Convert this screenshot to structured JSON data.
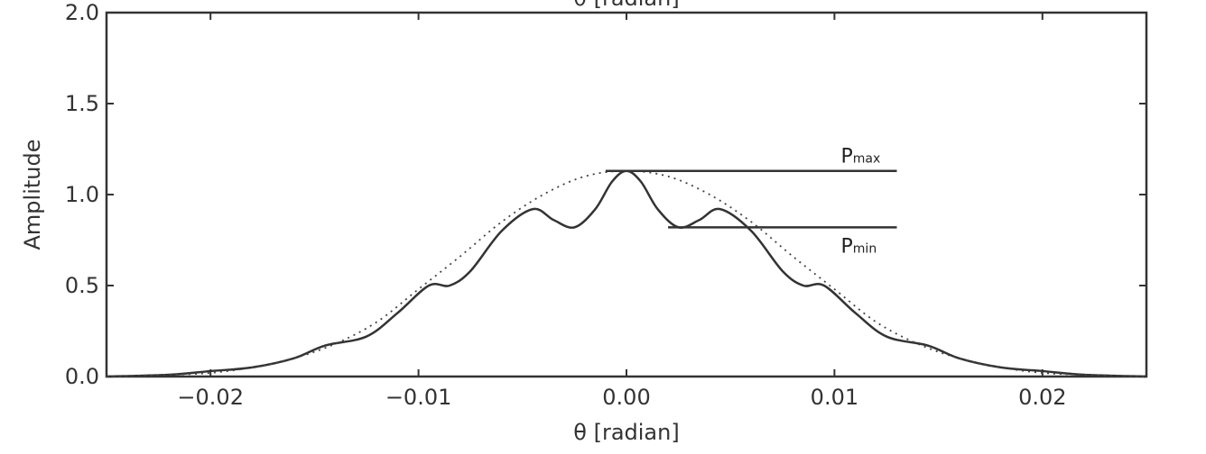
{
  "chart_data": {
    "type": "line",
    "title": "",
    "top_axis_label": "θ [radian]",
    "xlabel": "θ [radian]",
    "ylabel": "Amplitude",
    "xlim": [
      -0.025,
      0.025
    ],
    "ylim": [
      0.0,
      2.0
    ],
    "x_ticks": [
      -0.02,
      -0.01,
      0.0,
      0.01,
      0.02
    ],
    "x_tick_labels": [
      "−0.02",
      "−0.01",
      "0.00",
      "0.01",
      "0.02"
    ],
    "y_ticks": [
      0.0,
      0.5,
      1.0,
      1.5,
      2.0
    ],
    "y_tick_labels": [
      "0.0",
      "0.5",
      "1.0",
      "1.5",
      "2.0"
    ],
    "grid": false,
    "series": [
      {
        "style": "solid",
        "color": "#333333",
        "x": [
          -0.025,
          -0.022,
          -0.02,
          -0.018,
          -0.016,
          -0.0145,
          -0.0125,
          -0.011,
          -0.0095,
          -0.0085,
          -0.0075,
          -0.006,
          -0.0045,
          -0.0035,
          -0.0025,
          -0.0015,
          -0.0007,
          0.0,
          0.0007,
          0.0015,
          0.0025,
          0.0035,
          0.0045,
          0.006,
          0.0075,
          0.0085,
          0.0095,
          0.011,
          0.0125,
          0.0145,
          0.016,
          0.018,
          0.02,
          0.022,
          0.025
        ],
        "y": [
          0.0,
          0.01,
          0.03,
          0.05,
          0.1,
          0.17,
          0.22,
          0.35,
          0.5,
          0.5,
          0.58,
          0.8,
          0.92,
          0.86,
          0.82,
          0.92,
          1.07,
          1.13,
          1.07,
          0.92,
          0.82,
          0.86,
          0.92,
          0.8,
          0.58,
          0.5,
          0.5,
          0.35,
          0.22,
          0.17,
          0.1,
          0.05,
          0.03,
          0.01,
          0.0
        ]
      },
      {
        "style": "dotted",
        "color": "#444444",
        "x": [
          -0.025,
          -0.022,
          -0.02,
          -0.018,
          -0.016,
          -0.014,
          -0.012,
          -0.01,
          -0.008,
          -0.006,
          -0.004,
          -0.002,
          0.0,
          0.002,
          0.004,
          0.006,
          0.008,
          0.01,
          0.012,
          0.014,
          0.016,
          0.018,
          0.02,
          0.022,
          0.025
        ],
        "y": [
          0.0,
          0.01,
          0.02,
          0.05,
          0.1,
          0.18,
          0.3,
          0.48,
          0.66,
          0.85,
          1.0,
          1.1,
          1.13,
          1.1,
          1.0,
          0.85,
          0.66,
          0.48,
          0.3,
          0.18,
          0.1,
          0.05,
          0.02,
          0.01,
          0.0
        ]
      }
    ],
    "annotations": [
      {
        "label_main": "P",
        "label_sub": "max",
        "y": 1.13,
        "x_start": -0.001,
        "x_end": 0.013
      },
      {
        "label_main": "P",
        "label_sub": "min",
        "y": 0.82,
        "x_start": 0.002,
        "x_end": 0.013
      }
    ]
  }
}
